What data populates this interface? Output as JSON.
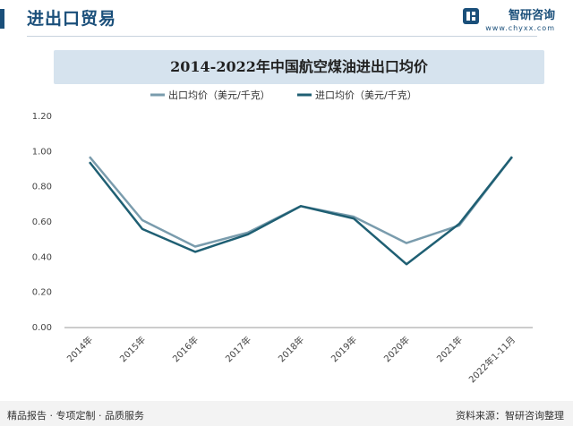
{
  "header": {
    "title": "进出口贸易"
  },
  "brand": {
    "name": "智研咨询",
    "url": "www.chyxx.com"
  },
  "chart_data": {
    "type": "line",
    "title": "2014-2022年中国航空煤油进出口均价",
    "categories": [
      "2014年",
      "2015年",
      "2016年",
      "2017年",
      "2018年",
      "2019年",
      "2020年",
      "2021年",
      "2022年1-11月"
    ],
    "ylim": [
      0,
      1.2
    ],
    "yticks": [
      "0.00",
      "0.20",
      "0.40",
      "0.60",
      "0.80",
      "1.00",
      "1.20"
    ],
    "legend_position": "top",
    "series": [
      {
        "name": "出口均价（美元/千克）",
        "color": "#7a9cad",
        "values": [
          0.97,
          0.61,
          0.46,
          0.54,
          0.69,
          0.63,
          0.48,
          0.58,
          0.97
        ]
      },
      {
        "name": "进口均价（美元/千克）",
        "color": "#1f5f73",
        "values": [
          0.94,
          0.56,
          0.43,
          0.53,
          0.69,
          0.62,
          0.36,
          0.59,
          0.97
        ]
      }
    ]
  },
  "footer": {
    "left": "精品报告 · 专项定制 · 品质服务",
    "right": "资料来源：智研咨询整理"
  }
}
